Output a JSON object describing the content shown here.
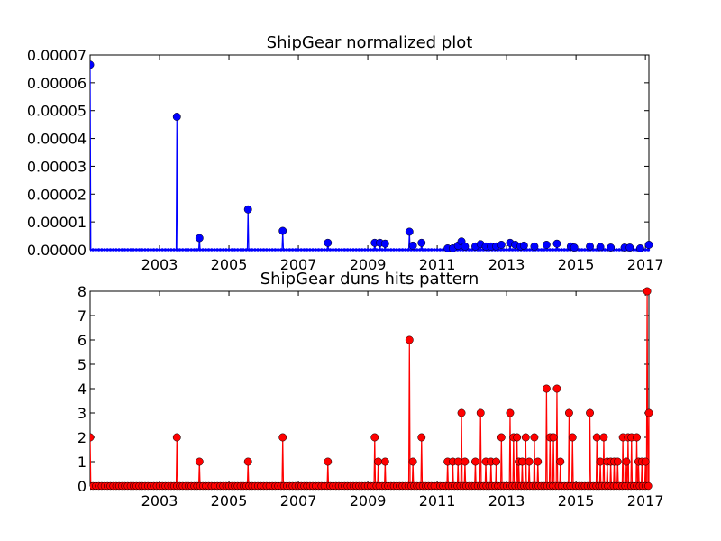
{
  "chart_data": [
    {
      "type": "line",
      "title": "ShipGear normalized plot",
      "xlabel": "",
      "ylabel": "",
      "xlim": [
        2001.0,
        2017.1
      ],
      "ylim": [
        0,
        7e-05
      ],
      "x_ticks": [
        2003,
        2005,
        2007,
        2009,
        2011,
        2013,
        2015,
        2017
      ],
      "x_tick_labels": [
        "2003",
        "2005",
        "2007",
        "2009",
        "2011",
        "2013",
        "2015",
        "2017"
      ],
      "y_ticks": [
        0,
        1e-05,
        2e-05,
        3e-05,
        4e-05,
        5e-05,
        6e-05,
        7e-05
      ],
      "y_tick_labels": [
        "0.00000",
        "0.00001",
        "0.00002",
        "0.00003",
        "0.00004",
        "0.00005",
        "0.00006",
        "0.00007"
      ],
      "colors": {
        "series": "#0000ff",
        "baseline": "#ff0000"
      },
      "series": [
        {
          "marker": "circle",
          "points": [
            [
              2001.0,
              6.65e-05
            ],
            [
              2003.5,
              4.78e-05
            ],
            [
              2004.15,
              4.2e-06
            ],
            [
              2005.55,
              1.45e-05
            ],
            [
              2006.55,
              6.8e-06
            ],
            [
              2007.85,
              2.5e-06
            ],
            [
              2009.2,
              2.5e-06
            ],
            [
              2009.35,
              2.5e-06
            ],
            [
              2009.5,
              2.2e-06
            ],
            [
              2010.2,
              6.5e-06
            ],
            [
              2010.3,
              1.5e-06
            ],
            [
              2010.55,
              2.5e-06
            ],
            [
              2011.3,
              5e-07
            ],
            [
              2011.45,
              5e-07
            ],
            [
              2011.6,
              1.5e-06
            ],
            [
              2011.7,
              3e-06
            ],
            [
              2011.8,
              1.2e-06
            ],
            [
              2012.1,
              1.2e-06
            ],
            [
              2012.25,
              2e-06
            ],
            [
              2012.4,
              1.2e-06
            ],
            [
              2012.55,
              1.2e-06
            ],
            [
              2012.7,
              1.2e-06
            ],
            [
              2012.85,
              1.8e-06
            ],
            [
              2013.1,
              2.5e-06
            ],
            [
              2013.25,
              1.8e-06
            ],
            [
              2013.4,
              1.2e-06
            ],
            [
              2013.5,
              1.5e-06
            ],
            [
              2013.8,
              1.2e-06
            ],
            [
              2014.15,
              1.8e-06
            ],
            [
              2014.45,
              2.2e-06
            ],
            [
              2014.85,
              1.2e-06
            ],
            [
              2014.95,
              8e-07
            ],
            [
              2015.4,
              1.2e-06
            ],
            [
              2015.7,
              1e-06
            ],
            [
              2016.0,
              8e-07
            ],
            [
              2016.4,
              8e-07
            ],
            [
              2016.55,
              8e-07
            ],
            [
              2016.85,
              5e-07
            ],
            [
              2017.1,
              1.8e-06
            ]
          ]
        }
      ],
      "baseline": 0
    },
    {
      "type": "line",
      "title": "ShipGear duns hits pattern",
      "xlabel": "",
      "ylabel": "",
      "xlim": [
        2001.0,
        2017.1
      ],
      "ylim": [
        0,
        8
      ],
      "x_ticks": [
        2003,
        2005,
        2007,
        2009,
        2011,
        2013,
        2015,
        2017
      ],
      "x_tick_labels": [
        "2003",
        "2005",
        "2007",
        "2009",
        "2011",
        "2013",
        "2015",
        "2017"
      ],
      "y_ticks": [
        0,
        1,
        2,
        3,
        4,
        5,
        6,
        7,
        8
      ],
      "y_tick_labels": [
        "0",
        "1",
        "2",
        "3",
        "4",
        "5",
        "6",
        "7",
        "8"
      ],
      "colors": {
        "series": "#ff0000"
      },
      "series": [
        {
          "marker": "circle",
          "points": [
            [
              2001.0,
              2
            ],
            [
              2003.5,
              2
            ],
            [
              2004.15,
              1
            ],
            [
              2005.55,
              1
            ],
            [
              2006.55,
              2
            ],
            [
              2007.85,
              1
            ],
            [
              2009.2,
              2
            ],
            [
              2009.3,
              1
            ],
            [
              2009.5,
              1
            ],
            [
              2010.2,
              6
            ],
            [
              2010.3,
              1
            ],
            [
              2010.55,
              2
            ],
            [
              2011.3,
              1
            ],
            [
              2011.45,
              1
            ],
            [
              2011.6,
              1
            ],
            [
              2011.7,
              3
            ],
            [
              2011.8,
              1
            ],
            [
              2012.1,
              1
            ],
            [
              2012.25,
              3
            ],
            [
              2012.4,
              1
            ],
            [
              2012.55,
              1
            ],
            [
              2012.7,
              1
            ],
            [
              2012.85,
              2
            ],
            [
              2013.1,
              3
            ],
            [
              2013.2,
              2
            ],
            [
              2013.3,
              2
            ],
            [
              2013.35,
              1
            ],
            [
              2013.45,
              1
            ],
            [
              2013.55,
              2
            ],
            [
              2013.65,
              1
            ],
            [
              2013.8,
              2
            ],
            [
              2013.9,
              1
            ],
            [
              2014.15,
              4
            ],
            [
              2014.25,
              2
            ],
            [
              2014.35,
              2
            ],
            [
              2014.45,
              4
            ],
            [
              2014.55,
              1
            ],
            [
              2014.8,
              3
            ],
            [
              2014.9,
              2
            ],
            [
              2015.4,
              3
            ],
            [
              2015.6,
              2
            ],
            [
              2015.7,
              1
            ],
            [
              2015.8,
              2
            ],
            [
              2015.9,
              1
            ],
            [
              2016.0,
              1
            ],
            [
              2016.1,
              1
            ],
            [
              2016.2,
              1
            ],
            [
              2016.35,
              2
            ],
            [
              2016.45,
              1
            ],
            [
              2016.5,
              2
            ],
            [
              2016.6,
              2
            ],
            [
              2016.75,
              2
            ],
            [
              2016.8,
              1
            ],
            [
              2016.9,
              1
            ],
            [
              2017.0,
              1
            ],
            [
              2017.05,
              8
            ],
            [
              2017.1,
              3
            ]
          ]
        }
      ]
    }
  ]
}
